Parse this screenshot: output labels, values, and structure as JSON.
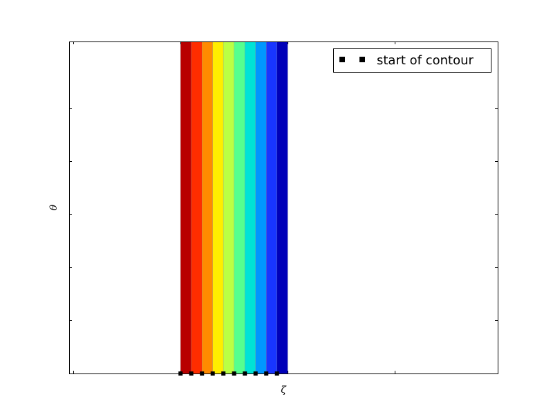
{
  "chart_data": {
    "type": "area",
    "title": "",
    "xlabel": "ζ",
    "ylabel": "θ",
    "bands": [
      {
        "x": [
          0.0,
          0.05
        ],
        "color": "#b80000"
      },
      {
        "x": [
          0.05,
          0.1
        ],
        "color": "#ff2d00"
      },
      {
        "x": [
          0.1,
          0.15
        ],
        "color": "#ff8a00"
      },
      {
        "x": [
          0.15,
          0.2
        ],
        "color": "#ffee00"
      },
      {
        "x": [
          0.2,
          0.25
        ],
        "color": "#bbff44"
      },
      {
        "x": [
          0.25,
          0.3
        ],
        "color": "#55ff8f"
      },
      {
        "x": [
          0.3,
          0.35
        ],
        "color": "#00e3d6"
      },
      {
        "x": [
          0.35,
          0.4
        ],
        "color": "#0097ff"
      },
      {
        "x": [
          0.4,
          0.45
        ],
        "color": "#1835ff"
      },
      {
        "x": [
          0.45,
          0.5
        ],
        "color": "#0000b8"
      }
    ],
    "series": [
      {
        "name": "start of contour",
        "marker": "square",
        "color": "#000000",
        "x": [
          0.0,
          0.05,
          0.1,
          0.15,
          0.2,
          0.25,
          0.3,
          0.35,
          0.4,
          0.45
        ],
        "y": [
          0,
          0,
          0,
          0,
          0,
          0,
          0,
          0,
          0,
          0
        ]
      }
    ],
    "xlim": [
      -0.52,
      1.48
    ],
    "ylim": [
      0,
      1
    ],
    "legend": "top-right",
    "grid": false
  }
}
